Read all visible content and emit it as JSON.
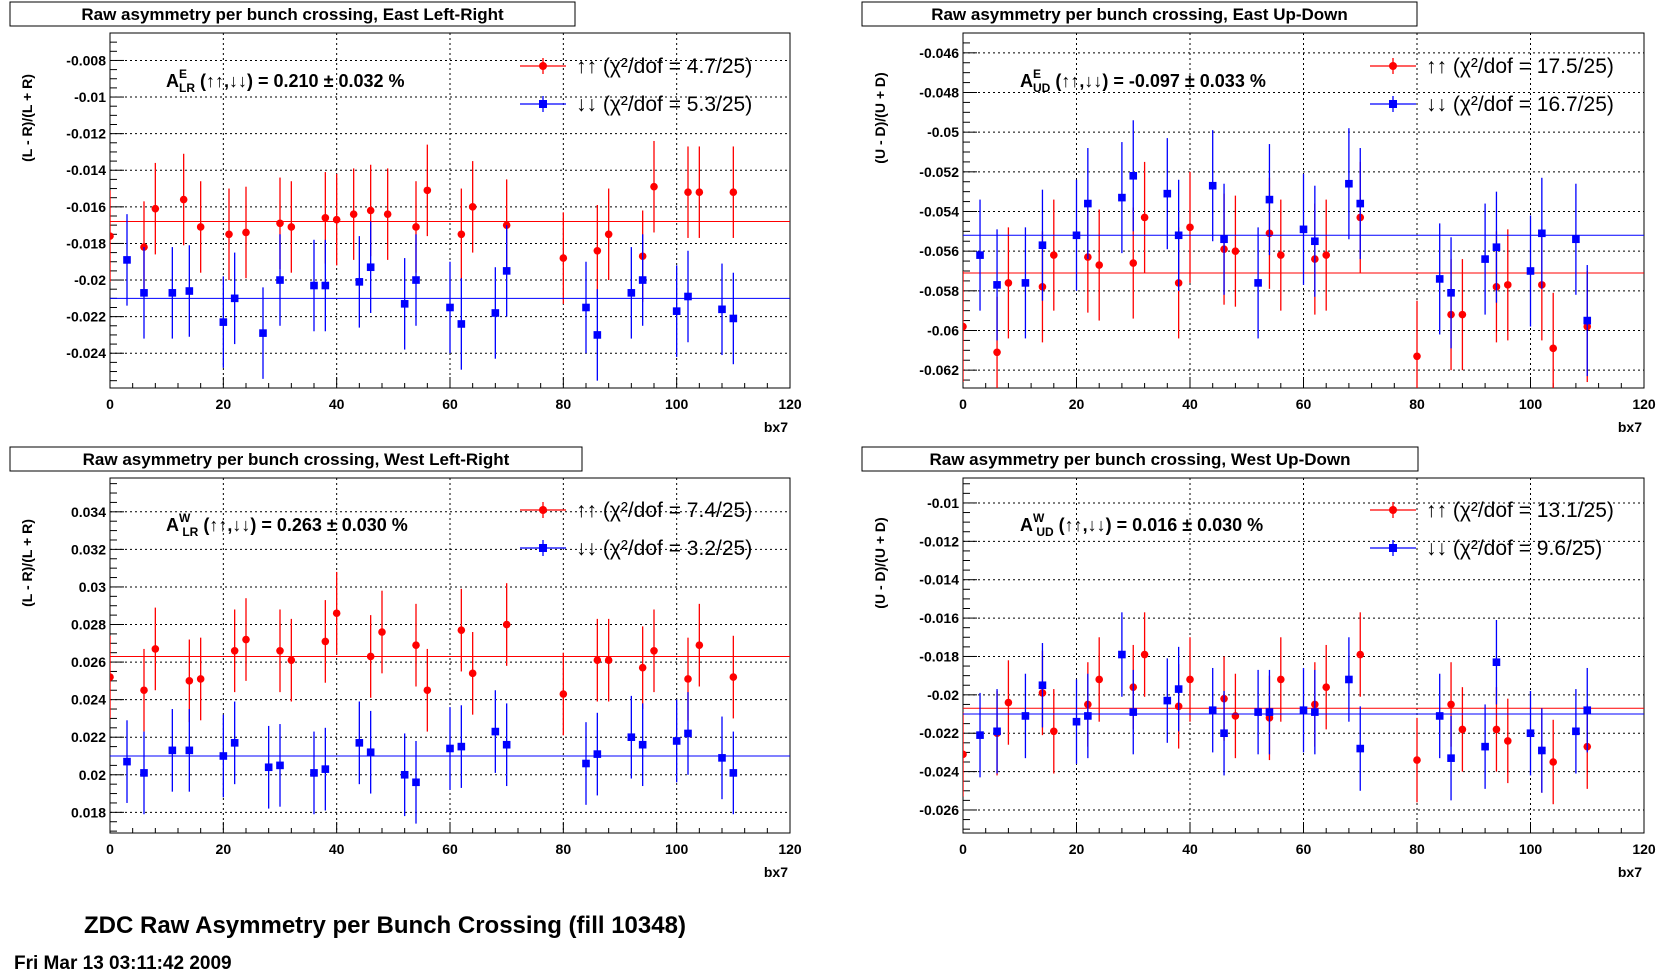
{
  "footer": {
    "title": "ZDC Raw Asymmetry per Bunch Crossing (fill 10348)",
    "timestamp": "Fri Mar 13 03:11:42 2009"
  },
  "colors": {
    "up": "#ff0000",
    "down": "#0000ff"
  },
  "chart_data": [
    {
      "type": "scatter",
      "title": "Raw asymmetry per bunch crossing, East Left-Right",
      "xlabel": "bx7",
      "ylabel": "(L - R)/(L + R)",
      "xlim": [
        0,
        120
      ],
      "ylim": [
        -0.0259,
        -0.0065
      ],
      "yticks": [
        -0.024,
        -0.022,
        -0.02,
        -0.018,
        -0.016,
        -0.014,
        -0.012,
        -0.01,
        -0.008
      ],
      "ytick_labels": [
        "-0.024",
        "-0.022",
        "-0.02",
        "-0.018",
        "-0.016",
        "-0.014",
        "-0.012",
        "-0.01",
        "-0.008"
      ],
      "xticks": [
        0,
        20,
        40,
        60,
        80,
        100,
        120
      ],
      "grid": true,
      "annotation": {
        "main": "A",
        "sup": "E",
        "sub": "LR",
        "rest": " (↑↑,↓↓) = 0.210 ± 0.032 %"
      },
      "series": [
        {
          "name": "↑↑ (χ²/dof = 4.7/25)",
          "marker": "circle",
          "fit": -0.0168,
          "x": [
            0,
            6,
            8,
            13,
            16,
            21,
            24,
            30,
            32,
            38,
            40,
            43,
            46,
            49,
            54,
            56,
            62,
            64,
            70,
            80,
            86,
            88,
            94,
            96,
            102,
            104,
            110
          ],
          "y": [
            -0.0176,
            -0.0182,
            -0.0161,
            -0.0156,
            -0.0171,
            -0.0175,
            -0.0174,
            -0.0169,
            -0.0171,
            -0.0166,
            -0.0167,
            -0.0164,
            -0.0162,
            -0.0164,
            -0.0171,
            -0.0151,
            -0.0175,
            -0.016,
            -0.017,
            -0.0188,
            -0.0184,
            -0.0175,
            -0.0187,
            -0.0149,
            -0.0152,
            -0.0152,
            -0.0152
          ],
          "err": [
            0.0025,
            0.0025,
            0.0025,
            0.0025,
            0.0025,
            0.0025,
            0.0025,
            0.0025,
            0.0025,
            0.0025,
            0.0025,
            0.0025,
            0.0025,
            0.0025,
            0.0025,
            0.0025,
            0.0025,
            0.0025,
            0.0025,
            0.0025,
            0.0025,
            0.0025,
            0.0025,
            0.0025,
            0.0025,
            0.0025,
            0.0025
          ]
        },
        {
          "name": "↓↓ (χ²/dof = 5.3/25)",
          "marker": "square",
          "fit": -0.021,
          "x": [
            3,
            6,
            11,
            14,
            20,
            22,
            27,
            30,
            36,
            38,
            44,
            46,
            52,
            54,
            60,
            62,
            68,
            70,
            84,
            86,
            92,
            94,
            100,
            102,
            108,
            110
          ],
          "y": [
            -0.0189,
            -0.0207,
            -0.0207,
            -0.0206,
            -0.0223,
            -0.021,
            -0.0229,
            -0.02,
            -0.0203,
            -0.0203,
            -0.0201,
            -0.0193,
            -0.0213,
            -0.02,
            -0.0215,
            -0.0224,
            -0.0218,
            -0.0195,
            -0.0215,
            -0.023,
            -0.0207,
            -0.02,
            -0.0217,
            -0.0209,
            -0.0216,
            -0.0221
          ],
          "err": [
            0.0025,
            0.0025,
            0.0025,
            0.0025,
            0.0025,
            0.0025,
            0.0025,
            0.0025,
            0.0025,
            0.0025,
            0.0025,
            0.0025,
            0.0025,
            0.0025,
            0.0025,
            0.0025,
            0.0025,
            0.0025,
            0.0025,
            0.0025,
            0.0025,
            0.0025,
            0.0025,
            0.0025,
            0.0025,
            0.0025
          ]
        }
      ]
    },
    {
      "type": "scatter",
      "title": "Raw asymmetry per bunch crossing, East Up-Down",
      "xlabel": "bx7",
      "ylabel": "(U - D)/(U + D)",
      "xlim": [
        0,
        120
      ],
      "ylim": [
        -0.0629,
        -0.045
      ],
      "yticks": [
        -0.062,
        -0.06,
        -0.058,
        -0.056,
        -0.054,
        -0.052,
        -0.05,
        -0.048,
        -0.046
      ],
      "ytick_labels": [
        "-0.062",
        "-0.06",
        "-0.058",
        "-0.056",
        "-0.054",
        "-0.052",
        "-0.05",
        "-0.048",
        "-0.046"
      ],
      "xticks": [
        0,
        20,
        40,
        60,
        80,
        100,
        120
      ],
      "grid": true,
      "annotation": {
        "main": "A",
        "sup": "E",
        "sub": "UD",
        "rest": " (↑↑,↓↓) = -0.097 ± 0.033 %"
      },
      "series": [
        {
          "name": "↑↑ (χ²/dof = 17.5/25)",
          "marker": "circle",
          "fit": -0.0571,
          "x": [
            0,
            6,
            8,
            14,
            16,
            22,
            24,
            30,
            32,
            38,
            40,
            46,
            48,
            54,
            56,
            62,
            64,
            70,
            80,
            86,
            88,
            94,
            96,
            102,
            104,
            110
          ],
          "y": [
            -0.0598,
            -0.0611,
            -0.0576,
            -0.0578,
            -0.0562,
            -0.0563,
            -0.0567,
            -0.0566,
            -0.0543,
            -0.0576,
            -0.0548,
            -0.0559,
            -0.056,
            -0.0551,
            -0.0562,
            -0.0564,
            -0.0562,
            -0.0543,
            -0.0613,
            -0.0592,
            -0.0592,
            -0.0578,
            -0.0577,
            -0.0577,
            -0.0609,
            -0.0598
          ],
          "err": [
            0.0028,
            0.0028,
            0.0028,
            0.0028,
            0.0028,
            0.0028,
            0.0028,
            0.0028,
            0.0028,
            0.0028,
            0.0028,
            0.0028,
            0.0028,
            0.0028,
            0.0028,
            0.0028,
            0.0028,
            0.0028,
            0.0028,
            0.0028,
            0.0028,
            0.0028,
            0.0028,
            0.0028,
            0.0028,
            0.0028
          ]
        },
        {
          "name": "↓↓ (χ²/dof = 16.7/25)",
          "marker": "square",
          "fit": -0.0552,
          "x": [
            3,
            6,
            11,
            14,
            20,
            22,
            28,
            30,
            36,
            38,
            44,
            46,
            52,
            54,
            60,
            62,
            68,
            70,
            84,
            86,
            92,
            94,
            100,
            102,
            108,
            110
          ],
          "y": [
            -0.0562,
            -0.0577,
            -0.0576,
            -0.0557,
            -0.0552,
            -0.0536,
            -0.0533,
            -0.0522,
            -0.0531,
            -0.0552,
            -0.0527,
            -0.0554,
            -0.0576,
            -0.0534,
            -0.0549,
            -0.0555,
            -0.0526,
            -0.0536,
            -0.0574,
            -0.0581,
            -0.0564,
            -0.0558,
            -0.057,
            -0.0551,
            -0.0554,
            -0.0595
          ],
          "err": [
            0.0028,
            0.0028,
            0.0028,
            0.0028,
            0.0028,
            0.0028,
            0.0028,
            0.0028,
            0.0028,
            0.0028,
            0.0028,
            0.0028,
            0.0028,
            0.0028,
            0.0028,
            0.0028,
            0.0028,
            0.0028,
            0.0028,
            0.0028,
            0.0028,
            0.0028,
            0.0028,
            0.0028,
            0.0028,
            0.0028
          ]
        }
      ]
    },
    {
      "type": "scatter",
      "title": "Raw asymmetry per bunch crossing, West Left-Right",
      "xlabel": "bx7",
      "ylabel": "(L - R)/(L + R)",
      "xlim": [
        0,
        120
      ],
      "ylim": [
        0.0169,
        0.0358
      ],
      "yticks": [
        0.018,
        0.02,
        0.022,
        0.024,
        0.026,
        0.028,
        0.03,
        0.032,
        0.034
      ],
      "ytick_labels": [
        "0.018",
        "0.02",
        "0.022",
        "0.024",
        "0.026",
        "0.028",
        "0.03",
        "0.032",
        "0.034"
      ],
      "xticks": [
        0,
        20,
        40,
        60,
        80,
        100,
        120
      ],
      "grid": true,
      "annotation": {
        "main": "A",
        "sup": "W",
        "sub": "LR",
        "rest": " (↑↑,↓↓) = 0.263 ± 0.030 %"
      },
      "series": [
        {
          "name": "↑↑ (χ²/dof = 7.4/25)",
          "marker": "circle",
          "fit": 0.0263,
          "x": [
            0,
            6,
            8,
            14,
            16,
            22,
            24,
            30,
            32,
            38,
            40,
            46,
            48,
            54,
            56,
            62,
            64,
            70,
            80,
            86,
            88,
            94,
            96,
            102,
            104,
            110
          ],
          "y": [
            0.0252,
            0.0245,
            0.0267,
            0.025,
            0.0251,
            0.0266,
            0.0272,
            0.0266,
            0.0261,
            0.0271,
            0.0286,
            0.0263,
            0.0276,
            0.0269,
            0.0245,
            0.0277,
            0.0254,
            0.028,
            0.0243,
            0.0261,
            0.0261,
            0.0257,
            0.0266,
            0.0251,
            0.0269,
            0.0252
          ],
          "err": [
            0.0022,
            0.0022,
            0.0022,
            0.0022,
            0.0022,
            0.0022,
            0.0022,
            0.0022,
            0.0022,
            0.0022,
            0.0022,
            0.0022,
            0.0022,
            0.0022,
            0.0022,
            0.0022,
            0.0022,
            0.0022,
            0.0022,
            0.0022,
            0.0022,
            0.0022,
            0.0022,
            0.0022,
            0.0022,
            0.0022
          ]
        },
        {
          "name": "↓↓ (χ²/dof = 3.2/25)",
          "marker": "square",
          "fit": 0.021,
          "x": [
            3,
            6,
            11,
            14,
            20,
            22,
            28,
            30,
            36,
            38,
            44,
            46,
            52,
            54,
            60,
            62,
            68,
            70,
            84,
            86,
            92,
            94,
            100,
            102,
            108,
            110
          ],
          "y": [
            0.0207,
            0.0201,
            0.0213,
            0.0213,
            0.021,
            0.0217,
            0.0204,
            0.0205,
            0.0201,
            0.0203,
            0.0217,
            0.0212,
            0.02,
            0.0196,
            0.0214,
            0.0215,
            0.0223,
            0.0216,
            0.0206,
            0.0211,
            0.022,
            0.0216,
            0.0218,
            0.0222,
            0.0209,
            0.0201
          ],
          "err": [
            0.0022,
            0.0022,
            0.0022,
            0.0022,
            0.0022,
            0.0022,
            0.0022,
            0.0022,
            0.0022,
            0.0022,
            0.0022,
            0.0022,
            0.0022,
            0.0022,
            0.0022,
            0.0022,
            0.0022,
            0.0022,
            0.0022,
            0.0022,
            0.0022,
            0.0022,
            0.0022,
            0.0022,
            0.0022,
            0.0022
          ]
        }
      ]
    },
    {
      "type": "scatter",
      "title": "Raw asymmetry per bunch crossing, West Up-Down",
      "xlabel": "bx7",
      "ylabel": "(U - D)/(U + D)",
      "xlim": [
        0,
        120
      ],
      "ylim": [
        -0.0272,
        -0.0087
      ],
      "yticks": [
        -0.026,
        -0.024,
        -0.022,
        -0.02,
        -0.018,
        -0.016,
        -0.014,
        -0.012,
        -0.01
      ],
      "ytick_labels": [
        "-0.026",
        "-0.024",
        "-0.022",
        "-0.02",
        "-0.018",
        "-0.016",
        "-0.014",
        "-0.012",
        "-0.01"
      ],
      "xticks": [
        0,
        20,
        40,
        60,
        80,
        100,
        120
      ],
      "grid": true,
      "annotation": {
        "main": "A",
        "sup": "W",
        "sub": "UD",
        "rest": " (↑↑,↓↓) = 0.016 ± 0.030 %"
      },
      "series": [
        {
          "name": "↑↑ (χ²/dof = 13.1/25)",
          "marker": "circle",
          "fit": -0.0207,
          "x": [
            0,
            6,
            8,
            14,
            16,
            22,
            24,
            30,
            32,
            38,
            40,
            46,
            48,
            54,
            56,
            62,
            64,
            70,
            80,
            86,
            88,
            94,
            96,
            102,
            104,
            110
          ],
          "y": [
            -0.0231,
            -0.022,
            -0.0204,
            -0.0199,
            -0.0219,
            -0.0205,
            -0.0192,
            -0.0196,
            -0.0179,
            -0.0206,
            -0.0192,
            -0.0202,
            -0.0211,
            -0.0212,
            -0.0192,
            -0.0205,
            -0.0196,
            -0.0179,
            -0.0234,
            -0.0205,
            -0.0218,
            -0.0218,
            -0.0224,
            -0.0229,
            -0.0235,
            -0.0227
          ],
          "err": [
            0.0022,
            0.0022,
            0.0022,
            0.0022,
            0.0022,
            0.0022,
            0.0022,
            0.0022,
            0.0022,
            0.0022,
            0.0022,
            0.0022,
            0.0022,
            0.0022,
            0.0022,
            0.0022,
            0.0022,
            0.0022,
            0.0022,
            0.0022,
            0.0022,
            0.0022,
            0.0022,
            0.0022,
            0.0022,
            0.0022
          ]
        },
        {
          "name": "↓↓ (χ²/dof = 9.6/25)",
          "marker": "square",
          "fit": -0.021,
          "x": [
            3,
            6,
            11,
            14,
            20,
            22,
            28,
            30,
            36,
            38,
            44,
            46,
            52,
            54,
            60,
            62,
            68,
            70,
            84,
            86,
            92,
            94,
            100,
            102,
            108,
            110
          ],
          "y": [
            -0.0221,
            -0.0219,
            -0.0211,
            -0.0195,
            -0.0214,
            -0.0211,
            -0.0179,
            -0.0209,
            -0.0203,
            -0.0197,
            -0.0208,
            -0.022,
            -0.0209,
            -0.0209,
            -0.0208,
            -0.0209,
            -0.0192,
            -0.0228,
            -0.0211,
            -0.0233,
            -0.0227,
            -0.0183,
            -0.022,
            -0.0229,
            -0.0219,
            -0.0208
          ],
          "err": [
            0.0022,
            0.0022,
            0.0022,
            0.0022,
            0.0022,
            0.0022,
            0.0022,
            0.0022,
            0.0022,
            0.0022,
            0.0022,
            0.0022,
            0.0022,
            0.0022,
            0.0022,
            0.0022,
            0.0022,
            0.0022,
            0.0022,
            0.0022,
            0.0022,
            0.0022,
            0.0022,
            0.0022,
            0.0022,
            0.0022
          ]
        }
      ]
    }
  ]
}
